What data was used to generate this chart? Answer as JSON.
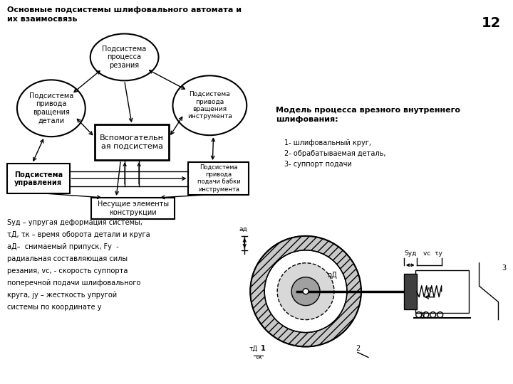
{
  "title": "Основные подсистемы шлифовального автомата и\nих взаимосвязь",
  "page_number": "12",
  "right_title": "Модель процесса врезного внутреннего\nшлифования:",
  "right_list": [
    "1- шлифовальный круг,",
    "2- обрабатываемая деталь,",
    "3- суппорт подачи"
  ],
  "bottom_left_text_lines": [
    "Sуд – упругая деформация системы,",
    "τД, τк – время оборота детали и круга",
    "аД–  снимаемый припуск, Fу  -",
    "радиальная составляющая силы",
    "резания, vс, - скорость суппорта",
    "поперечной подачи шлифовального",
    "круга, jу – жесткость упругой",
    "системы по координате у"
  ],
  "bg_color": "#ffffff",
  "text_color": "#000000"
}
